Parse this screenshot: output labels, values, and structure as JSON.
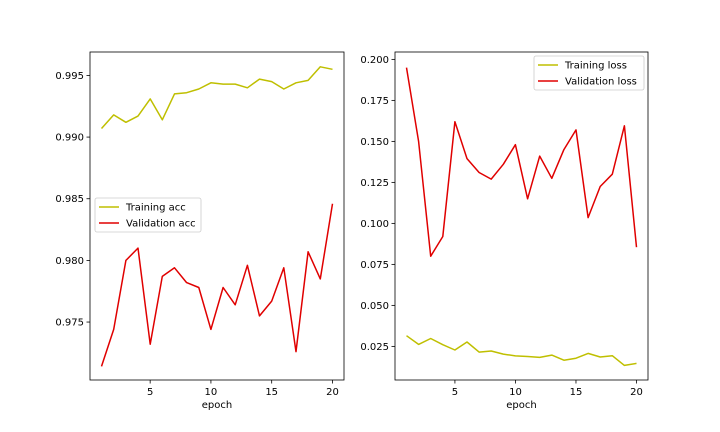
{
  "chart_data": [
    {
      "type": "line",
      "xlabel": "epoch",
      "ylabel": "",
      "xlim": [
        0.05,
        20.95
      ],
      "ylim": [
        0.9703,
        0.9969
      ],
      "xticks": [
        5,
        10,
        15,
        20
      ],
      "xtick_labels": [
        "5",
        "10",
        "15",
        "20"
      ],
      "yticks": [
        0.975,
        0.98,
        0.985,
        0.99,
        0.995
      ],
      "ytick_labels": [
        "0.975",
        "0.980",
        "0.985",
        "0.990",
        "0.995"
      ],
      "legend_position": "center-left",
      "x": [
        1,
        2,
        3,
        4,
        5,
        6,
        7,
        8,
        9,
        10,
        11,
        12,
        13,
        14,
        15,
        16,
        17,
        18,
        19,
        20
      ],
      "series": [
        {
          "name": "Training acc",
          "color": "#bfbf00",
          "values": [
            0.9907,
            0.9918,
            0.9912,
            0.9917,
            0.9931,
            0.9914,
            0.9935,
            0.9936,
            0.9939,
            0.9944,
            0.9943,
            0.9943,
            0.994,
            0.9947,
            0.9945,
            0.9939,
            0.9944,
            0.9946,
            0.9957,
            0.9955
          ]
        },
        {
          "name": "Validation acc",
          "color": "#e00000",
          "values": [
            0.9714,
            0.9744,
            0.98,
            0.981,
            0.9732,
            0.9787,
            0.9794,
            0.9782,
            0.9778,
            0.9744,
            0.9778,
            0.9764,
            0.9796,
            0.9755,
            0.9767,
            0.9794,
            0.9726,
            0.9807,
            0.9785,
            0.9846
          ]
        }
      ]
    },
    {
      "type": "line",
      "xlabel": "epoch",
      "ylabel": "",
      "xlim": [
        0.05,
        20.95
      ],
      "ylim": [
        0.0045,
        0.2045
      ],
      "xticks": [
        5,
        10,
        15,
        20
      ],
      "xtick_labels": [
        "5",
        "10",
        "15",
        "20"
      ],
      "yticks": [
        0.025,
        0.05,
        0.075,
        0.1,
        0.125,
        0.15,
        0.175,
        0.2
      ],
      "ytick_labels": [
        "0.025",
        "0.050",
        "0.075",
        "0.100",
        "0.125",
        "0.150",
        "0.175",
        "0.200"
      ],
      "legend_position": "upper-right",
      "x": [
        1,
        2,
        3,
        4,
        5,
        6,
        7,
        8,
        9,
        10,
        11,
        12,
        13,
        14,
        15,
        16,
        17,
        18,
        19,
        20
      ],
      "series": [
        {
          "name": "Training loss",
          "color": "#bfbf00",
          "values": [
            0.0315,
            0.0262,
            0.0298,
            0.026,
            0.0228,
            0.0277,
            0.0215,
            0.0222,
            0.0203,
            0.0192,
            0.0188,
            0.0183,
            0.0197,
            0.0166,
            0.0178,
            0.0207,
            0.0185,
            0.0193,
            0.0134,
            0.0146
          ]
        },
        {
          "name": "Validation loss",
          "color": "#e00000",
          "values": [
            0.195,
            0.15,
            0.08,
            0.092,
            0.162,
            0.1395,
            0.131,
            0.127,
            0.136,
            0.148,
            0.115,
            0.141,
            0.1275,
            0.145,
            0.157,
            0.1035,
            0.1225,
            0.13,
            0.1595,
            0.0855
          ]
        }
      ]
    }
  ]
}
